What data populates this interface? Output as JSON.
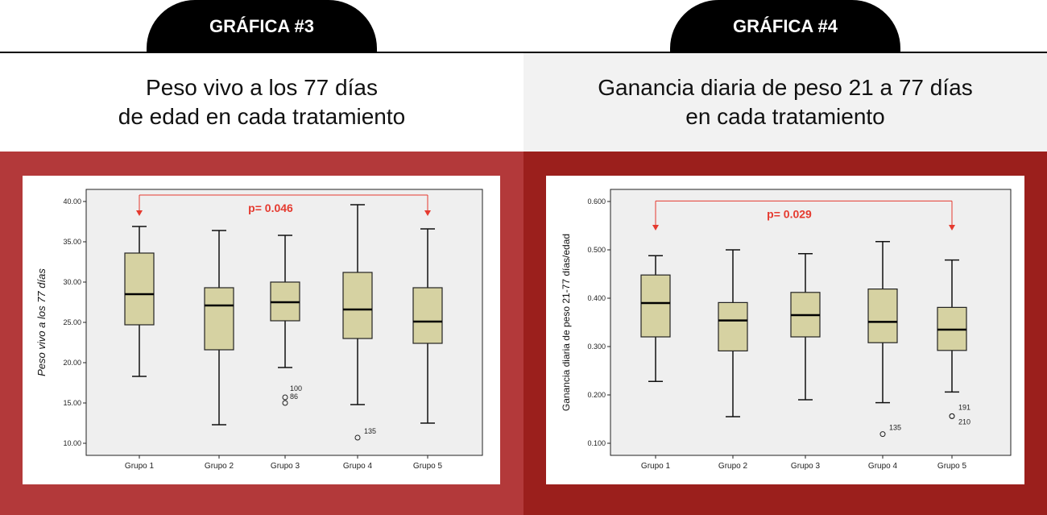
{
  "tabs": [
    "GRÁFICA #3",
    "GRÁFICA #4"
  ],
  "headings": [
    {
      "line1": "Peso vivo a los 77 días",
      "line2": "de edad en cada tratamiento"
    },
    {
      "line1": "Ganancia diaria de peso 21 a 77 días",
      "line2": "en cada tratamiento"
    }
  ],
  "colors": {
    "panel_left": "#b3393a",
    "panel_right": "#9b1f1c",
    "box_fill": "#d6d2a2",
    "annotation": "#e53a2f",
    "plot_bg": "#efefef"
  },
  "chart_data": [
    {
      "type": "boxplot",
      "ylabel": "Peso vivo a los 77 días",
      "ylim": [
        8.5,
        41.5
      ],
      "yticks": [
        10,
        15,
        20,
        25,
        30,
        35,
        40
      ],
      "ytick_labels": [
        "10.00",
        "15.00",
        "20.00",
        "25.00",
        "30.00",
        "35.00",
        "40.00"
      ],
      "categories": [
        "Grupo 1",
        "Grupo 2",
        "Grupo 3",
        "Grupo 4",
        "Grupo 5"
      ],
      "boxes": [
        {
          "min": 18.3,
          "q1": 24.7,
          "median": 28.5,
          "q3": 33.6,
          "max": 36.9
        },
        {
          "min": 12.3,
          "q1": 21.6,
          "median": 27.1,
          "q3": 29.3,
          "max": 36.4
        },
        {
          "min": 19.4,
          "q1": 25.2,
          "median": 27.5,
          "q3": 30.0,
          "max": 35.8
        },
        {
          "min": 14.8,
          "q1": 23.0,
          "median": 26.6,
          "q3": 31.2,
          "max": 39.6
        },
        {
          "min": 12.5,
          "q1": 22.4,
          "median": 25.1,
          "q3": 29.3,
          "max": 36.6
        }
      ],
      "outliers": [
        {
          "group": 2,
          "value": 15.7,
          "label": "100"
        },
        {
          "group": 2,
          "value": 15.0,
          "label": "86"
        },
        {
          "group": 3,
          "value": 10.7,
          "label": "135"
        }
      ],
      "annotation": {
        "text": "p= 0.046",
        "from": 0,
        "to": 4,
        "level": 40.8
      }
    },
    {
      "type": "boxplot",
      "ylabel": "Ganancia diaria de peso 21-77 días/edad",
      "ylim": [
        0.075,
        0.625
      ],
      "yticks": [
        0.1,
        0.2,
        0.3,
        0.4,
        0.5,
        0.6
      ],
      "ytick_labels": [
        "0.100",
        "0.200",
        "0.300",
        "0.400",
        "0.500",
        "0.600"
      ],
      "categories": [
        "Grupo 1",
        "Grupo 2",
        "Grupo 3",
        "Grupo 4",
        "Grupo 5"
      ],
      "boxes": [
        {
          "min": 0.228,
          "q1": 0.32,
          "median": 0.39,
          "q3": 0.448,
          "max": 0.488
        },
        {
          "min": 0.155,
          "q1": 0.291,
          "median": 0.354,
          "q3": 0.391,
          "max": 0.5
        },
        {
          "min": 0.19,
          "q1": 0.32,
          "median": 0.365,
          "q3": 0.412,
          "max": 0.492
        },
        {
          "min": 0.184,
          "q1": 0.308,
          "median": 0.351,
          "q3": 0.419,
          "max": 0.517
        },
        {
          "min": 0.206,
          "q1": 0.292,
          "median": 0.335,
          "q3": 0.381,
          "max": 0.479
        }
      ],
      "outliers": [
        {
          "group": 3,
          "value": 0.119,
          "label": "135"
        },
        {
          "group": 4,
          "value": 0.156,
          "label": "191"
        },
        {
          "group": 4,
          "value": 0.156,
          "label": "210"
        }
      ],
      "annotation": {
        "text": "p= 0.029",
        "from": 0,
        "to": 4,
        "level": 0.601
      }
    }
  ]
}
